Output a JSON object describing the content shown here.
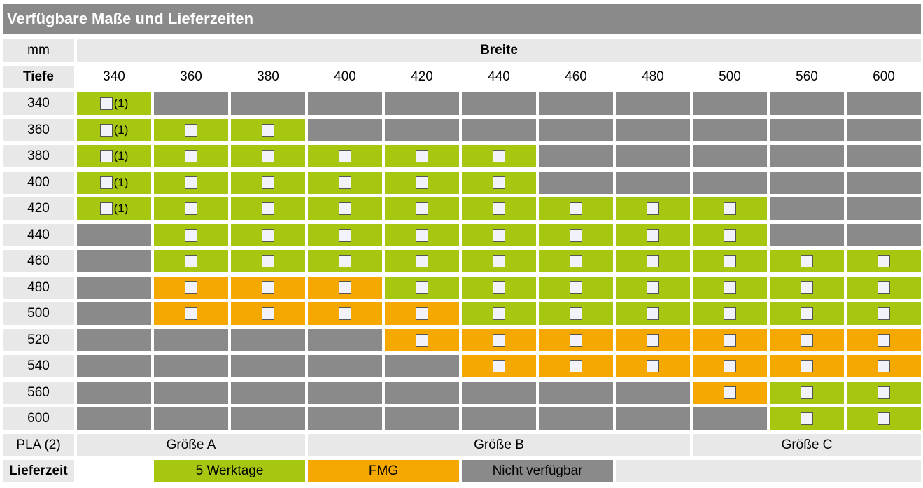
{
  "title": "Verfügbare Maße und Lieferzeiten",
  "unit_label": "mm",
  "breite_label": "Breite",
  "tiefe_label": "Tiefe",
  "widths": [
    "340",
    "360",
    "380",
    "400",
    "420",
    "440",
    "460",
    "480",
    "500",
    "560",
    "600"
  ],
  "rows": [
    {
      "depth": "340",
      "cells": [
        "G1",
        "X",
        "X",
        "X",
        "X",
        "X",
        "X",
        "X",
        "X",
        "X",
        "X"
      ]
    },
    {
      "depth": "360",
      "cells": [
        "G1",
        "G",
        "G",
        "X",
        "X",
        "X",
        "X",
        "X",
        "X",
        "X",
        "X"
      ]
    },
    {
      "depth": "380",
      "cells": [
        "G1",
        "G",
        "G",
        "G",
        "G",
        "G",
        "X",
        "X",
        "X",
        "X",
        "X"
      ]
    },
    {
      "depth": "400",
      "cells": [
        "G1",
        "G",
        "G",
        "G",
        "G",
        "G",
        "X",
        "X",
        "X",
        "X",
        "X"
      ]
    },
    {
      "depth": "420",
      "cells": [
        "G1",
        "G",
        "G",
        "G",
        "G",
        "G",
        "G",
        "G",
        "G",
        "X",
        "X"
      ]
    },
    {
      "depth": "440",
      "cells": [
        "X",
        "G",
        "G",
        "G",
        "G",
        "G",
        "G",
        "G",
        "G",
        "X",
        "X"
      ]
    },
    {
      "depth": "460",
      "cells": [
        "X",
        "G",
        "G",
        "G",
        "G",
        "G",
        "G",
        "G",
        "G",
        "G",
        "G"
      ]
    },
    {
      "depth": "480",
      "cells": [
        "X",
        "O",
        "O",
        "O",
        "G",
        "G",
        "G",
        "G",
        "G",
        "G",
        "G"
      ]
    },
    {
      "depth": "500",
      "cells": [
        "X",
        "O",
        "O",
        "O",
        "O",
        "G",
        "G",
        "G",
        "G",
        "G",
        "G"
      ]
    },
    {
      "depth": "520",
      "cells": [
        "X",
        "X",
        "X",
        "X",
        "O",
        "O",
        "O",
        "O",
        "O",
        "O",
        "O"
      ]
    },
    {
      "depth": "540",
      "cells": [
        "X",
        "X",
        "X",
        "X",
        "X",
        "O",
        "O",
        "O",
        "O",
        "O",
        "O"
      ]
    },
    {
      "depth": "560",
      "cells": [
        "X",
        "X",
        "X",
        "X",
        "X",
        "X",
        "X",
        "X",
        "O",
        "G",
        "G"
      ]
    },
    {
      "depth": "600",
      "cells": [
        "X",
        "X",
        "X",
        "X",
        "X",
        "X",
        "X",
        "X",
        "X",
        "G",
        "G"
      ]
    }
  ],
  "footnote_marker": "(1)",
  "pla_label": "PLA (2)",
  "pla_groups": [
    {
      "label": "Größe A",
      "span": 3
    },
    {
      "label": "Größe B",
      "span": 5
    },
    {
      "label": "Größe C",
      "span": 3
    }
  ],
  "legend": {
    "label": "Lieferzeit",
    "items": [
      {
        "label": "5 Werktage",
        "color": "#a6c70f"
      },
      {
        "label": "FMG",
        "color": "#f5a800"
      },
      {
        "label": "Nicht verfügbar",
        "color": "#8a8a8a"
      }
    ]
  },
  "colors": {
    "green": "#a6c70f",
    "orange": "#f5a800",
    "gray": "#8a8a8a",
    "light": "#e8e8e8"
  }
}
